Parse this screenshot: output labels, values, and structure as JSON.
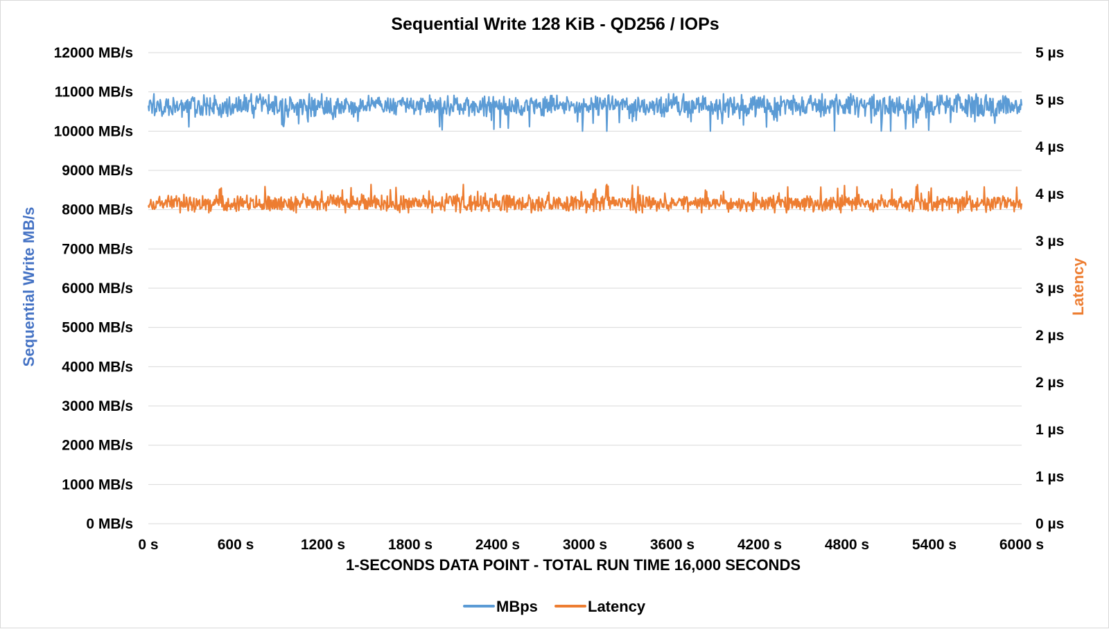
{
  "chart_data": {
    "type": "line",
    "title": "Sequential Write 128 KiB - QD256 / IOPs",
    "xlabel": "1-SECONDS DATA POINT - TOTAL RUN TIME 16,000 SECONDS",
    "ylabel_left": "Sequential Write MB/s",
    "ylabel_right": "Latency",
    "x_range": [
      0,
      6000
    ],
    "y_left_range": [
      0,
      12000
    ],
    "y_right_range": [
      0,
      5
    ],
    "x_ticks": [
      "0 s",
      "600 s",
      "1200 s",
      "1800 s",
      "2400 s",
      "3000 s",
      "3600 s",
      "4200 s",
      "4800 s",
      "5400 s",
      "6000 s"
    ],
    "y_left_ticks": [
      "0 MB/s",
      "1000 MB/s",
      "2000 MB/s",
      "3000 MB/s",
      "4000 MB/s",
      "5000 MB/s",
      "6000 MB/s",
      "7000 MB/s",
      "8000 MB/s",
      "9000 MB/s",
      "10000 MB/s",
      "11000 MB/s",
      "12000 MB/s"
    ],
    "y_right_ticks": [
      "0 µs",
      "1 µs",
      "1 µs",
      "2 µs",
      "2 µs",
      "3 µs",
      "3 µs",
      "4 µs",
      "4 µs",
      "5 µs",
      "5 µs"
    ],
    "grid": true,
    "legend_position": "bottom",
    "series": [
      {
        "name": "MBps",
        "axis": "left",
        "color": "#5b9bd5",
        "mean": 10650,
        "min": 10000,
        "max": 10950,
        "sample_x": [
          0,
          600,
          1200,
          1800,
          2400,
          3000,
          3150,
          3600,
          4200,
          4800,
          5400,
          6000
        ],
        "sample_y": [
          10650,
          10620,
          10600,
          10640,
          10610,
          10620,
          10000,
          10650,
          10630,
          10640,
          10620,
          10650
        ]
      },
      {
        "name": "Latency",
        "axis": "right",
        "color": "#ed7d31",
        "mean": 3.4,
        "min": 3.3,
        "max": 3.6,
        "sample_x": [
          0,
          600,
          1200,
          1800,
          2400,
          3000,
          3150,
          3600,
          4200,
          4800,
          5400,
          6000
        ],
        "sample_y": [
          3.38,
          3.4,
          3.42,
          3.41,
          3.42,
          3.41,
          3.6,
          3.4,
          3.42,
          3.41,
          3.41,
          3.4
        ]
      }
    ]
  }
}
